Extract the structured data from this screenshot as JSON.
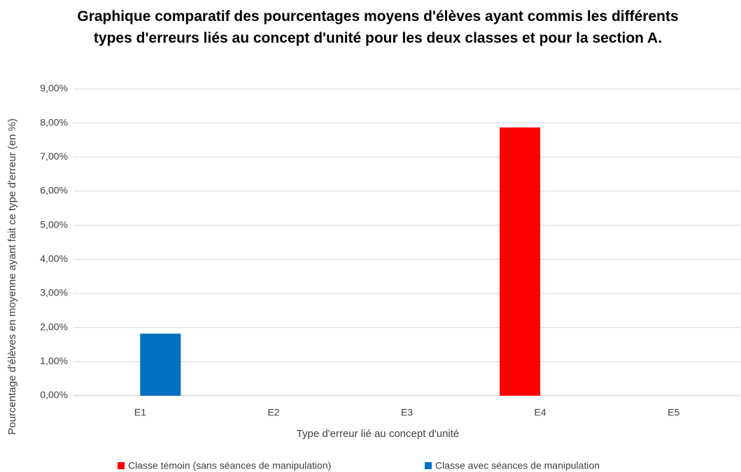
{
  "chart_data": {
    "type": "bar",
    "title": "Graphique comparatif des pourcentages moyens d'élèves ayant commis les différents types d'erreurs liés au concept d'unité pour les deux classes et pour la section A.",
    "x_label": "Type d'erreur lié au concept d'unité",
    "y_label": "Pourcentage d'élèves en moyenne ayant fait ce type d'erreur (en %)",
    "categories": [
      "E1",
      "E2",
      "E3",
      "E4",
      "E5"
    ],
    "series": [
      {
        "name": "Classe témoin (sans séances de manipulation)",
        "color": "#ff0000",
        "values": [
          0,
          0,
          0,
          7.87,
          0
        ]
      },
      {
        "name": "Classe avec séances de manipulation",
        "color": "#0070c0",
        "values": [
          1.82,
          0,
          0,
          0,
          0
        ]
      }
    ],
    "ylim": [
      0,
      9
    ],
    "yticks": [
      {
        "value": 0,
        "label": "0,00%"
      },
      {
        "value": 1,
        "label": "1,00%"
      },
      {
        "value": 2,
        "label": "2,00%"
      },
      {
        "value": 3,
        "label": "3,00%"
      },
      {
        "value": 4,
        "label": "4,00%"
      },
      {
        "value": 5,
        "label": "5,00%"
      },
      {
        "value": 6,
        "label": "6,00%"
      },
      {
        "value": 7,
        "label": "7,00%"
      },
      {
        "value": 8,
        "label": "8,00%"
      },
      {
        "value": 9,
        "label": "9,00%"
      }
    ],
    "grid": true,
    "legend": "bottom"
  }
}
